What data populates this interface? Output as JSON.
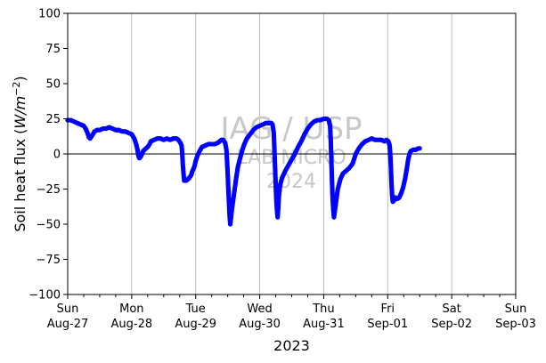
{
  "chart_data": {
    "type": "scatter",
    "title": "",
    "xlabel": "2023",
    "ylabel": "Soil heat flux (",
    "ylabel_math": "W/m",
    "ylabel_exp": "−2",
    "ylabel_close": ")",
    "ylim": [
      -100,
      100
    ],
    "yticks": [
      100,
      75,
      50,
      25,
      0,
      -25,
      -50,
      -75,
      -100
    ],
    "ytick_labels": [
      "100",
      "75",
      "50",
      "25",
      "0",
      "−25",
      "−50",
      "−75",
      "−100"
    ],
    "xlim": [
      "2023-08-27 00:00",
      "2023-09-03 00:00"
    ],
    "xticks": [
      {
        "day": "Sun",
        "date": "Aug-27"
      },
      {
        "day": "Mon",
        "date": "Aug-28"
      },
      {
        "day": "Tue",
        "date": "Aug-29"
      },
      {
        "day": "Wed",
        "date": "Aug-30"
      },
      {
        "day": "Thu",
        "date": "Aug-31"
      },
      {
        "day": "Fri",
        "date": "Sep-01"
      },
      {
        "day": "Sat",
        "date": "Sep-02"
      },
      {
        "day": "Sun",
        "date": "Sep-03"
      }
    ],
    "grid": "x-major",
    "zero_line": true,
    "marker_color": "#0000ff",
    "series": [
      {
        "x_unit": "days since Aug-27 00:00",
        "points": [
          [
            0.0,
            24
          ],
          [
            0.05,
            24
          ],
          [
            0.1,
            23
          ],
          [
            0.15,
            22
          ],
          [
            0.2,
            21
          ],
          [
            0.25,
            20
          ],
          [
            0.28,
            18
          ],
          [
            0.31,
            15
          ],
          [
            0.33,
            12
          ],
          [
            0.35,
            11
          ],
          [
            0.38,
            13
          ],
          [
            0.42,
            16
          ],
          [
            0.46,
            17
          ],
          [
            0.5,
            17
          ],
          [
            0.55,
            18
          ],
          [
            0.6,
            18
          ],
          [
            0.65,
            19
          ],
          [
            0.7,
            18
          ],
          [
            0.75,
            17
          ],
          [
            0.8,
            17
          ],
          [
            0.85,
            16
          ],
          [
            0.9,
            16
          ],
          [
            0.95,
            15
          ],
          [
            1.0,
            14
          ],
          [
            1.04,
            11
          ],
          [
            1.07,
            7
          ],
          [
            1.09,
            3
          ],
          [
            1.1,
            0
          ],
          [
            1.11,
            -2
          ],
          [
            1.12,
            -3
          ],
          [
            1.14,
            -2
          ],
          [
            1.16,
            0
          ],
          [
            1.18,
            2
          ],
          [
            1.2,
            3
          ],
          [
            1.25,
            5
          ],
          [
            1.28,
            7
          ],
          [
            1.3,
            9
          ],
          [
            1.35,
            10
          ],
          [
            1.4,
            11
          ],
          [
            1.45,
            11
          ],
          [
            1.5,
            10
          ],
          [
            1.55,
            11
          ],
          [
            1.6,
            10
          ],
          [
            1.65,
            11
          ],
          [
            1.7,
            11
          ],
          [
            1.73,
            10
          ],
          [
            1.76,
            8
          ],
          [
            1.78,
            6
          ],
          [
            1.79,
            0
          ],
          [
            1.8,
            -8
          ],
          [
            1.81,
            -14
          ],
          [
            1.82,
            -19
          ],
          [
            1.85,
            -19
          ],
          [
            1.88,
            -18
          ],
          [
            1.9,
            -17
          ],
          [
            1.93,
            -15
          ],
          [
            1.95,
            -12
          ],
          [
            1.98,
            -9
          ],
          [
            2.0,
            -5
          ],
          [
            2.03,
            -1
          ],
          [
            2.06,
            2
          ],
          [
            2.1,
            5
          ],
          [
            2.15,
            6
          ],
          [
            2.2,
            7
          ],
          [
            2.25,
            7
          ],
          [
            2.3,
            7
          ],
          [
            2.35,
            8
          ],
          [
            2.4,
            10
          ],
          [
            2.43,
            10
          ],
          [
            2.46,
            8
          ],
          [
            2.48,
            3
          ],
          [
            2.49,
            -5
          ],
          [
            2.5,
            -14
          ],
          [
            2.51,
            -25
          ],
          [
            2.52,
            -35
          ],
          [
            2.53,
            -44
          ],
          [
            2.54,
            -50
          ],
          [
            2.55,
            -46
          ],
          [
            2.57,
            -38
          ],
          [
            2.6,
            -28
          ],
          [
            2.63,
            -18
          ],
          [
            2.66,
            -9
          ],
          [
            2.7,
            -2
          ],
          [
            2.73,
            3
          ],
          [
            2.76,
            7
          ],
          [
            2.8,
            11
          ],
          [
            2.85,
            14
          ],
          [
            2.9,
            17
          ],
          [
            2.95,
            19
          ],
          [
            3.0,
            20
          ],
          [
            3.05,
            21
          ],
          [
            3.1,
            22
          ],
          [
            3.15,
            22
          ],
          [
            3.18,
            22
          ],
          [
            3.2,
            21
          ],
          [
            3.22,
            15
          ],
          [
            3.23,
            3
          ],
          [
            3.24,
            -10
          ],
          [
            3.25,
            -22
          ],
          [
            3.26,
            -33
          ],
          [
            3.27,
            -40
          ],
          [
            3.28,
            -45
          ],
          [
            3.29,
            -38
          ],
          [
            3.3,
            -30
          ],
          [
            3.32,
            -22
          ],
          [
            3.35,
            -17
          ],
          [
            3.4,
            -12
          ],
          [
            3.45,
            -8
          ],
          [
            3.5,
            -4
          ],
          [
            3.55,
            0
          ],
          [
            3.6,
            5
          ],
          [
            3.65,
            9
          ],
          [
            3.7,
            14
          ],
          [
            3.75,
            18
          ],
          [
            3.8,
            21
          ],
          [
            3.85,
            23
          ],
          [
            3.9,
            24
          ],
          [
            3.95,
            24
          ],
          [
            4.0,
            25
          ],
          [
            4.05,
            25
          ],
          [
            4.08,
            24
          ],
          [
            4.1,
            20
          ],
          [
            4.11,
            10
          ],
          [
            4.12,
            -5
          ],
          [
            4.13,
            -20
          ],
          [
            4.14,
            -32
          ],
          [
            4.15,
            -40
          ],
          [
            4.16,
            -45
          ],
          [
            4.17,
            -42
          ],
          [
            4.19,
            -35
          ],
          [
            4.22,
            -25
          ],
          [
            4.26,
            -18
          ],
          [
            4.3,
            -14
          ],
          [
            4.35,
            -12
          ],
          [
            4.4,
            -10
          ],
          [
            4.45,
            -7
          ],
          [
            4.48,
            -3
          ],
          [
            4.5,
            0
          ],
          [
            4.55,
            4
          ],
          [
            4.6,
            7
          ],
          [
            4.65,
            9
          ],
          [
            4.7,
            10
          ],
          [
            4.75,
            11
          ],
          [
            4.8,
            10
          ],
          [
            4.85,
            10
          ],
          [
            4.9,
            10
          ],
          [
            4.95,
            9
          ],
          [
            4.98,
            10
          ],
          [
            5.01,
            9
          ],
          [
            5.03,
            6
          ],
          [
            5.04,
            0
          ],
          [
            5.05,
            -10
          ],
          [
            5.06,
            -22
          ],
          [
            5.07,
            -30
          ],
          [
            5.08,
            -34
          ],
          [
            5.1,
            -33
          ],
          [
            5.12,
            -31
          ],
          [
            5.15,
            -32
          ],
          [
            5.18,
            -31
          ],
          [
            5.21,
            -28
          ],
          [
            5.24,
            -24
          ],
          [
            5.27,
            -18
          ],
          [
            5.3,
            -10
          ],
          [
            5.32,
            -4
          ],
          [
            5.34,
            0
          ],
          [
            5.36,
            2
          ],
          [
            5.4,
            3
          ],
          [
            5.44,
            3
          ],
          [
            5.48,
            4
          ],
          [
            5.5,
            4
          ]
        ]
      }
    ]
  },
  "watermark": {
    "line1": "IAG / USP",
    "line2": "LAB MICRO",
    "line3": "2024"
  }
}
